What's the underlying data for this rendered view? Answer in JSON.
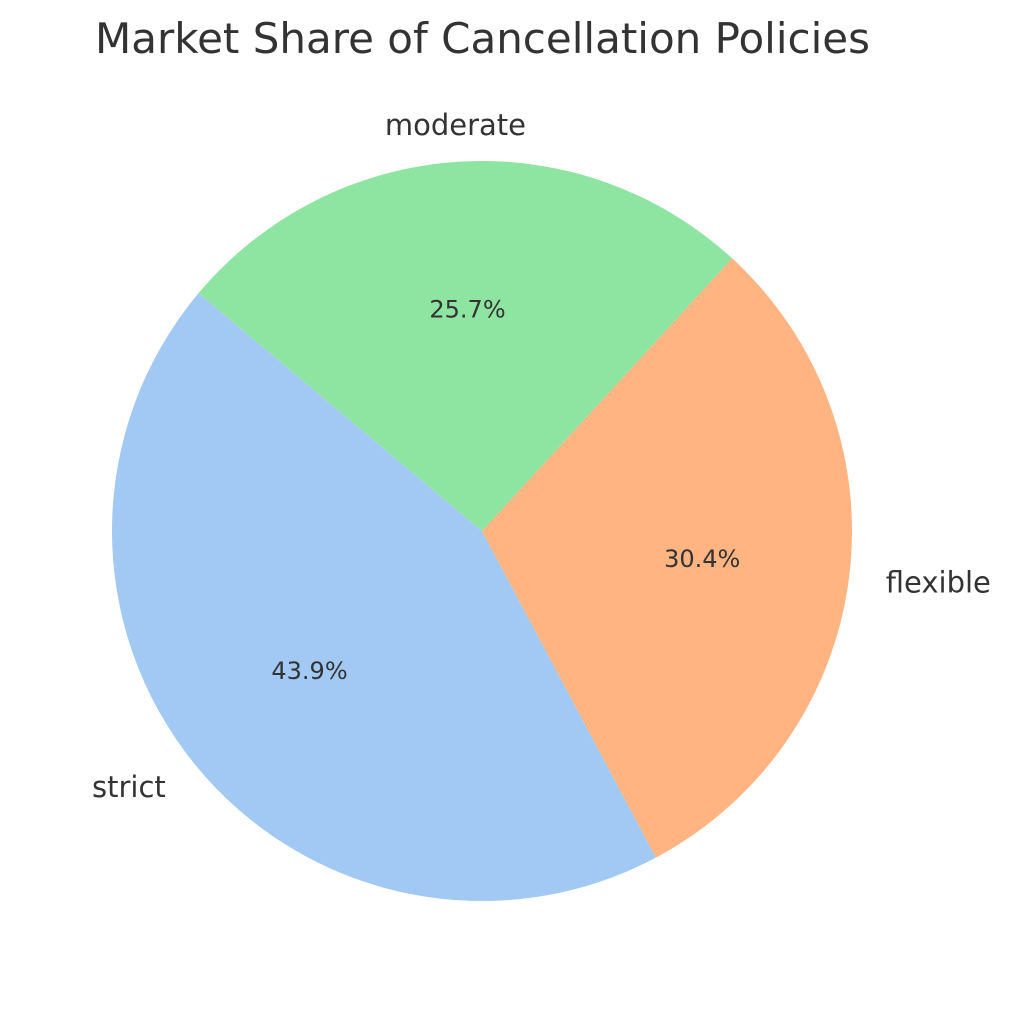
{
  "chart_data": {
    "type": "pie",
    "title": "Market Share of Cancellation Policies",
    "categories": [
      "strict",
      "flexible",
      "moderate"
    ],
    "values": [
      43.9,
      30.4,
      25.7
    ],
    "percent_labels": [
      "43.9%",
      "30.4%",
      "25.7%"
    ],
    "colors": [
      "#a1c9f4",
      "#ffb482",
      "#8de5a1"
    ],
    "start_angle_deg": 140,
    "direction": "counterclockwise",
    "legend": "none"
  }
}
